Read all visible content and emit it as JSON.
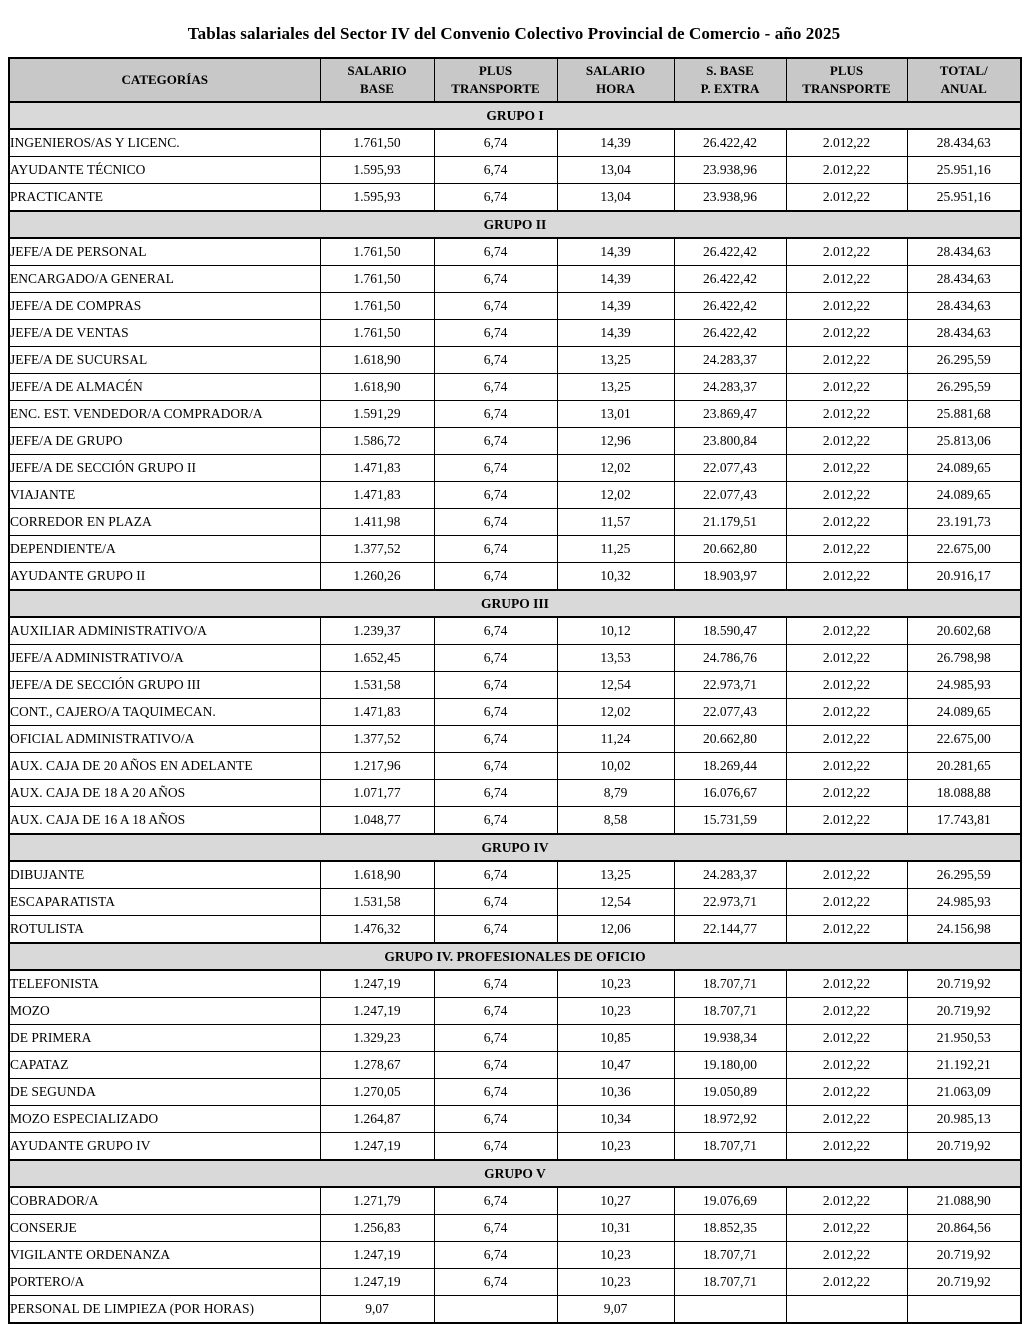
{
  "page": {
    "title": "Tablas salariales del Sector IV del Convenio Colectivo Provincial de Comercio - año 2025"
  },
  "colors": {
    "header_bg": "#c8c8c8",
    "group_bg": "#d9d9d9",
    "border": "#000000",
    "page_bg": "#ffffff"
  },
  "table": {
    "columns": [
      "CATEGORÍAS",
      "SALARIO\nBASE",
      "PLUS\nTRANSPORTE",
      "SALARIO\nHORA",
      "S. BASE\nP. EXTRA",
      "PLUS\nTRANSPORTE",
      "TOTAL/\nANUAL"
    ],
    "groups": [
      {
        "label": "GRUPO I",
        "rows": [
          {
            "category": "INGENIEROS/AS Y LICENC.",
            "values": [
              "1.761,50",
              "6,74",
              "14,39",
              "26.422,42",
              "2.012,22",
              "28.434,63"
            ]
          },
          {
            "category": "AYUDANTE TÉCNICO",
            "values": [
              "1.595,93",
              "6,74",
              "13,04",
              "23.938,96",
              "2.012,22",
              "25.951,16"
            ]
          },
          {
            "category": "PRACTICANTE",
            "values": [
              "1.595,93",
              "6,74",
              "13,04",
              "23.938,96",
              "2.012,22",
              "25.951,16"
            ]
          }
        ]
      },
      {
        "label": "GRUPO II",
        "rows": [
          {
            "category": "JEFE/A DE PERSONAL",
            "values": [
              "1.761,50",
              "6,74",
              "14,39",
              "26.422,42",
              "2.012,22",
              "28.434,63"
            ]
          },
          {
            "category": "ENCARGADO/A GENERAL",
            "values": [
              "1.761,50",
              "6,74",
              "14,39",
              "26.422,42",
              "2.012,22",
              "28.434,63"
            ]
          },
          {
            "category": "JEFE/A DE COMPRAS",
            "values": [
              "1.761,50",
              "6,74",
              "14,39",
              "26.422,42",
              "2.012,22",
              "28.434,63"
            ]
          },
          {
            "category": "JEFE/A DE VENTAS",
            "values": [
              "1.761,50",
              "6,74",
              "14,39",
              "26.422,42",
              "2.012,22",
              "28.434,63"
            ]
          },
          {
            "category": "JEFE/A DE SUCURSAL",
            "values": [
              "1.618,90",
              "6,74",
              "13,25",
              "24.283,37",
              "2.012,22",
              "26.295,59"
            ]
          },
          {
            "category": "JEFE/A DE ALMACÉN",
            "values": [
              "1.618,90",
              "6,74",
              "13,25",
              "24.283,37",
              "2.012,22",
              "26.295,59"
            ]
          },
          {
            "category": "ENC. EST. VENDEDOR/A COMPRADOR/A",
            "values": [
              "1.591,29",
              "6,74",
              "13,01",
              "23.869,47",
              "2.012,22",
              "25.881,68"
            ]
          },
          {
            "category": "JEFE/A DE GRUPO",
            "values": [
              "1.586,72",
              "6,74",
              "12,96",
              "23.800,84",
              "2.012,22",
              "25.813,06"
            ]
          },
          {
            "category": "JEFE/A DE SECCIÓN GRUPO II",
            "values": [
              "1.471,83",
              "6,74",
              "12,02",
              "22.077,43",
              "2.012,22",
              "24.089,65"
            ]
          },
          {
            "category": "VIAJANTE",
            "values": [
              "1.471,83",
              "6,74",
              "12,02",
              "22.077,43",
              "2.012,22",
              "24.089,65"
            ]
          },
          {
            "category": "CORREDOR EN PLAZA",
            "values": [
              "1.411,98",
              "6,74",
              "11,57",
              "21.179,51",
              "2.012,22",
              "23.191,73"
            ]
          },
          {
            "category": "DEPENDIENTE/A",
            "values": [
              "1.377,52",
              "6,74",
              "11,25",
              "20.662,80",
              "2.012,22",
              "22.675,00"
            ]
          },
          {
            "category": "AYUDANTE GRUPO II",
            "values": [
              "1.260,26",
              "6,74",
              "10,32",
              "18.903,97",
              "2.012,22",
              "20.916,17"
            ]
          }
        ]
      },
      {
        "label": "GRUPO III",
        "rows": [
          {
            "category": "AUXILIAR ADMINISTRATIVO/A",
            "values": [
              "1.239,37",
              "6,74",
              "10,12",
              "18.590,47",
              "2.012,22",
              "20.602,68"
            ]
          },
          {
            "category": "JEFE/A ADMINISTRATIVO/A",
            "values": [
              "1.652,45",
              "6,74",
              "13,53",
              "24.786,76",
              "2.012,22",
              "26.798,98"
            ]
          },
          {
            "category": "JEFE/A DE SECCIÓN GRUPO III",
            "values": [
              "1.531,58",
              "6,74",
              "12,54",
              "22.973,71",
              "2.012,22",
              "24.985,93"
            ]
          },
          {
            "category": "CONT., CAJERO/A TAQUIMECAN.",
            "values": [
              "1.471,83",
              "6,74",
              "12,02",
              "22.077,43",
              "2.012,22",
              "24.089,65"
            ]
          },
          {
            "category": "OFICIAL ADMINISTRATIVO/A",
            "values": [
              "1.377,52",
              "6,74",
              "11,24",
              "20.662,80",
              "2.012,22",
              "22.675,00"
            ]
          },
          {
            "category": "AUX. CAJA DE 20 AÑOS EN ADELANTE",
            "values": [
              "1.217,96",
              "6,74",
              "10,02",
              "18.269,44",
              "2.012,22",
              "20.281,65"
            ]
          },
          {
            "category": "AUX. CAJA DE 18 A 20 AÑOS",
            "values": [
              "1.071,77",
              "6,74",
              "8,79",
              "16.076,67",
              "2.012,22",
              "18.088,88"
            ]
          },
          {
            "category": "AUX. CAJA DE 16 A 18 AÑOS",
            "values": [
              "1.048,77",
              "6,74",
              "8,58",
              "15.731,59",
              "2.012,22",
              "17.743,81"
            ]
          }
        ]
      },
      {
        "label": "GRUPO IV",
        "rows": [
          {
            "category": "DIBUJANTE",
            "values": [
              "1.618,90",
              "6,74",
              "13,25",
              "24.283,37",
              "2.012,22",
              "26.295,59"
            ]
          },
          {
            "category": "ESCAPARATISTA",
            "values": [
              "1.531,58",
              "6,74",
              "12,54",
              "22.973,71",
              "2.012,22",
              "24.985,93"
            ]
          },
          {
            "category": "ROTULISTA",
            "values": [
              "1.476,32",
              "6,74",
              "12,06",
              "22.144,77",
              "2.012,22",
              "24.156,98"
            ]
          }
        ]
      },
      {
        "label": "GRUPO IV. PROFESIONALES DE OFICIO",
        "rows": [
          {
            "category": "TELEFONISTA",
            "values": [
              "1.247,19",
              "6,74",
              "10,23",
              "18.707,71",
              "2.012,22",
              "20.719,92"
            ]
          },
          {
            "category": "MOZO",
            "values": [
              "1.247,19",
              "6,74",
              "10,23",
              "18.707,71",
              "2.012,22",
              "20.719,92"
            ]
          },
          {
            "category": "DE PRIMERA",
            "values": [
              "1.329,23",
              "6,74",
              "10,85",
              "19.938,34",
              "2.012,22",
              "21.950,53"
            ]
          },
          {
            "category": "CAPATAZ",
            "values": [
              "1.278,67",
              "6,74",
              "10,47",
              "19.180,00",
              "2.012,22",
              "21.192,21"
            ]
          },
          {
            "category": "DE SEGUNDA",
            "values": [
              "1.270,05",
              "6,74",
              "10,36",
              "19.050,89",
              "2.012,22",
              "21.063,09"
            ]
          },
          {
            "category": "MOZO ESPECIALIZADO",
            "values": [
              "1.264,87",
              "6,74",
              "10,34",
              "18.972,92",
              "2.012,22",
              "20.985,13"
            ]
          },
          {
            "category": "AYUDANTE GRUPO IV",
            "values": [
              "1.247,19",
              "6,74",
              "10,23",
              "18.707,71",
              "2.012,22",
              "20.719,92"
            ]
          }
        ]
      },
      {
        "label": "GRUPO V",
        "rows": [
          {
            "category": "COBRADOR/A",
            "values": [
              "1.271,79",
              "6,74",
              "10,27",
              "19.076,69",
              "2.012,22",
              "21.088,90"
            ]
          },
          {
            "category": "CONSERJE",
            "values": [
              "1.256,83",
              "6,74",
              "10,31",
              "18.852,35",
              "2.012,22",
              "20.864,56"
            ]
          },
          {
            "category": "VIGILANTE ORDENANZA",
            "values": [
              "1.247,19",
              "6,74",
              "10,23",
              "18.707,71",
              "2.012,22",
              "20.719,92"
            ]
          },
          {
            "category": "PORTERO/A",
            "values": [
              "1.247,19",
              "6,74",
              "10,23",
              "18.707,71",
              "2.012,22",
              "20.719,92"
            ]
          },
          {
            "category": "PERSONAL DE LIMPIEZA (POR HORAS)",
            "values": [
              "9,07",
              "",
              "9,07",
              "",
              "",
              ""
            ]
          }
        ]
      }
    ]
  }
}
